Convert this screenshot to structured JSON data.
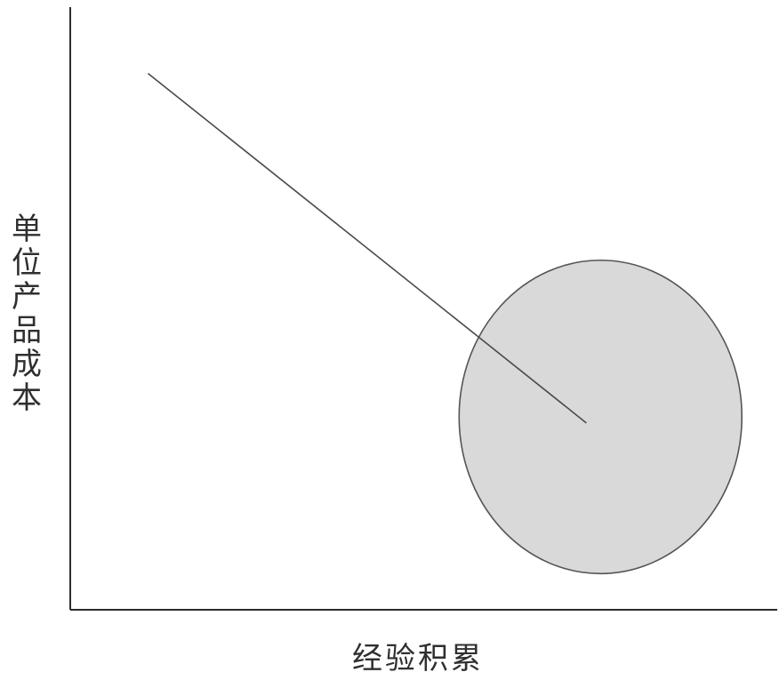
{
  "chart_data": {
    "type": "line",
    "title": "",
    "xlabel": "经验积累",
    "ylabel": "单位产品成本",
    "ylabel_chars": [
      "单",
      "位",
      "产",
      "品",
      "成",
      "本"
    ],
    "x_axis_ticks": "none",
    "y_axis_ticks": "none",
    "grid": false,
    "legend": "none",
    "series": [
      {
        "values": [
          {
            "x": 0.11,
            "y": 0.89
          },
          {
            "x": 0.73,
            "y": 0.31
          }
        ]
      }
    ],
    "highlighted_region": {
      "shape": "ellipse",
      "center": {
        "x": 0.75,
        "y": 0.32
      },
      "radius_x": 0.2,
      "radius_y": 0.26
    },
    "colors": {
      "axis": "#2d2d2d",
      "line": "#4a4a4a",
      "region_fill": "#d9d9d9",
      "region_stroke": "#555555",
      "text": "#2f2f2f"
    }
  }
}
